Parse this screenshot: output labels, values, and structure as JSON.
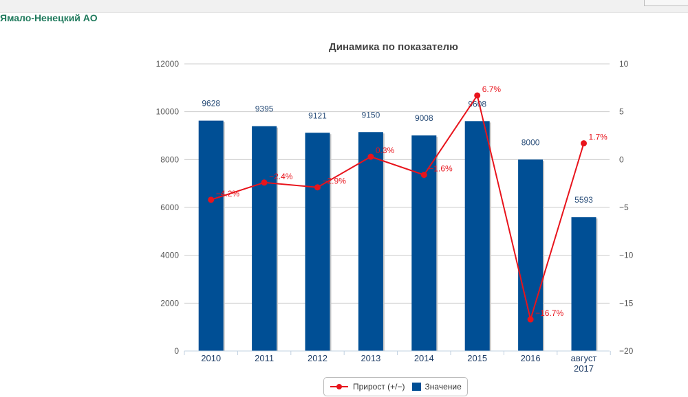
{
  "header": {
    "region": "Ямало-Ненецкий АО"
  },
  "colors": {
    "bar": "#004f95",
    "line": "#e8141c",
    "label": "#2b4f7a",
    "grid": "#cccccc",
    "axis_text": "#555555"
  },
  "chart_data": {
    "type": "bar+line",
    "title": "Динамика по показателю",
    "categories": [
      "2010",
      "2011",
      "2012",
      "2013",
      "2014",
      "2015",
      "2016",
      "август 2017"
    ],
    "category_lines": [
      [
        "2010"
      ],
      [
        "2011"
      ],
      [
        "2012"
      ],
      [
        "2013"
      ],
      [
        "2014"
      ],
      [
        "2015"
      ],
      [
        "2016"
      ],
      [
        "август",
        "2017"
      ]
    ],
    "series": [
      {
        "name": "Значение",
        "type": "bar",
        "axis": "left",
        "values": [
          9628,
          9395,
          9121,
          9150,
          9008,
          9608,
          8000,
          5593
        ],
        "labels": [
          "9628",
          "9395",
          "9121",
          "9150",
          "9008",
          "9608",
          "8000",
          "5593"
        ]
      },
      {
        "name": "Прирост (+/−)",
        "type": "line",
        "axis": "right",
        "values": [
          -4.2,
          -2.4,
          -2.9,
          0.3,
          -1.6,
          6.7,
          -16.7,
          1.7
        ],
        "labels": [
          "−4.2%",
          "−2.4%",
          "−2.9%",
          "0.3%",
          "−1.6%",
          "6.7%",
          "−16.7%",
          "1.7%"
        ]
      }
    ],
    "y_left": {
      "min": 0,
      "max": 12000,
      "ticks": [
        "0",
        "2000",
        "4000",
        "6000",
        "8000",
        "10000",
        "12000"
      ]
    },
    "y_right": {
      "min": -20,
      "max": 10,
      "ticks": [
        "−20",
        "−15",
        "−10",
        "−5",
        "0",
        "5",
        "10"
      ]
    },
    "grid": true,
    "legend_position": "bottom-center"
  },
  "legend": {
    "line_label": "Прирост (+/−)",
    "bar_label": "Значение"
  }
}
